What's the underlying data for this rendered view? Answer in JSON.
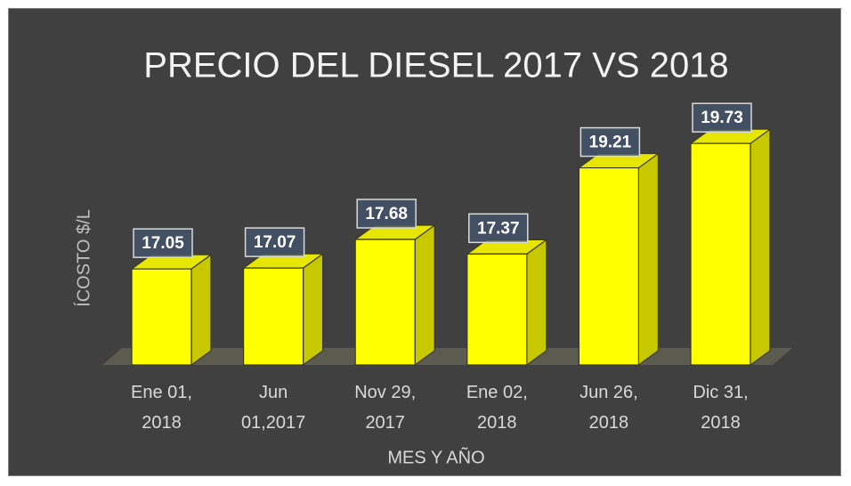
{
  "chart_data": {
    "type": "bar3d",
    "title": "PRECIO DEL DIESEL 2017 VS 2018",
    "x_label": "MES Y AÑO",
    "y_label": "ÍCOSTO  $/L",
    "categories": [
      "Ene 01,\n2018",
      "Jun\n01,2017",
      "Nov 29,\n2017",
      "Ene 02,\n2018",
      "Jun 26,\n2018",
      "Dic 31,\n2018"
    ],
    "values": [
      17.05,
      17.07,
      17.68,
      17.37,
      19.21,
      19.73
    ],
    "color": "#ffff00",
    "ylim": [
      15,
      20
    ]
  }
}
